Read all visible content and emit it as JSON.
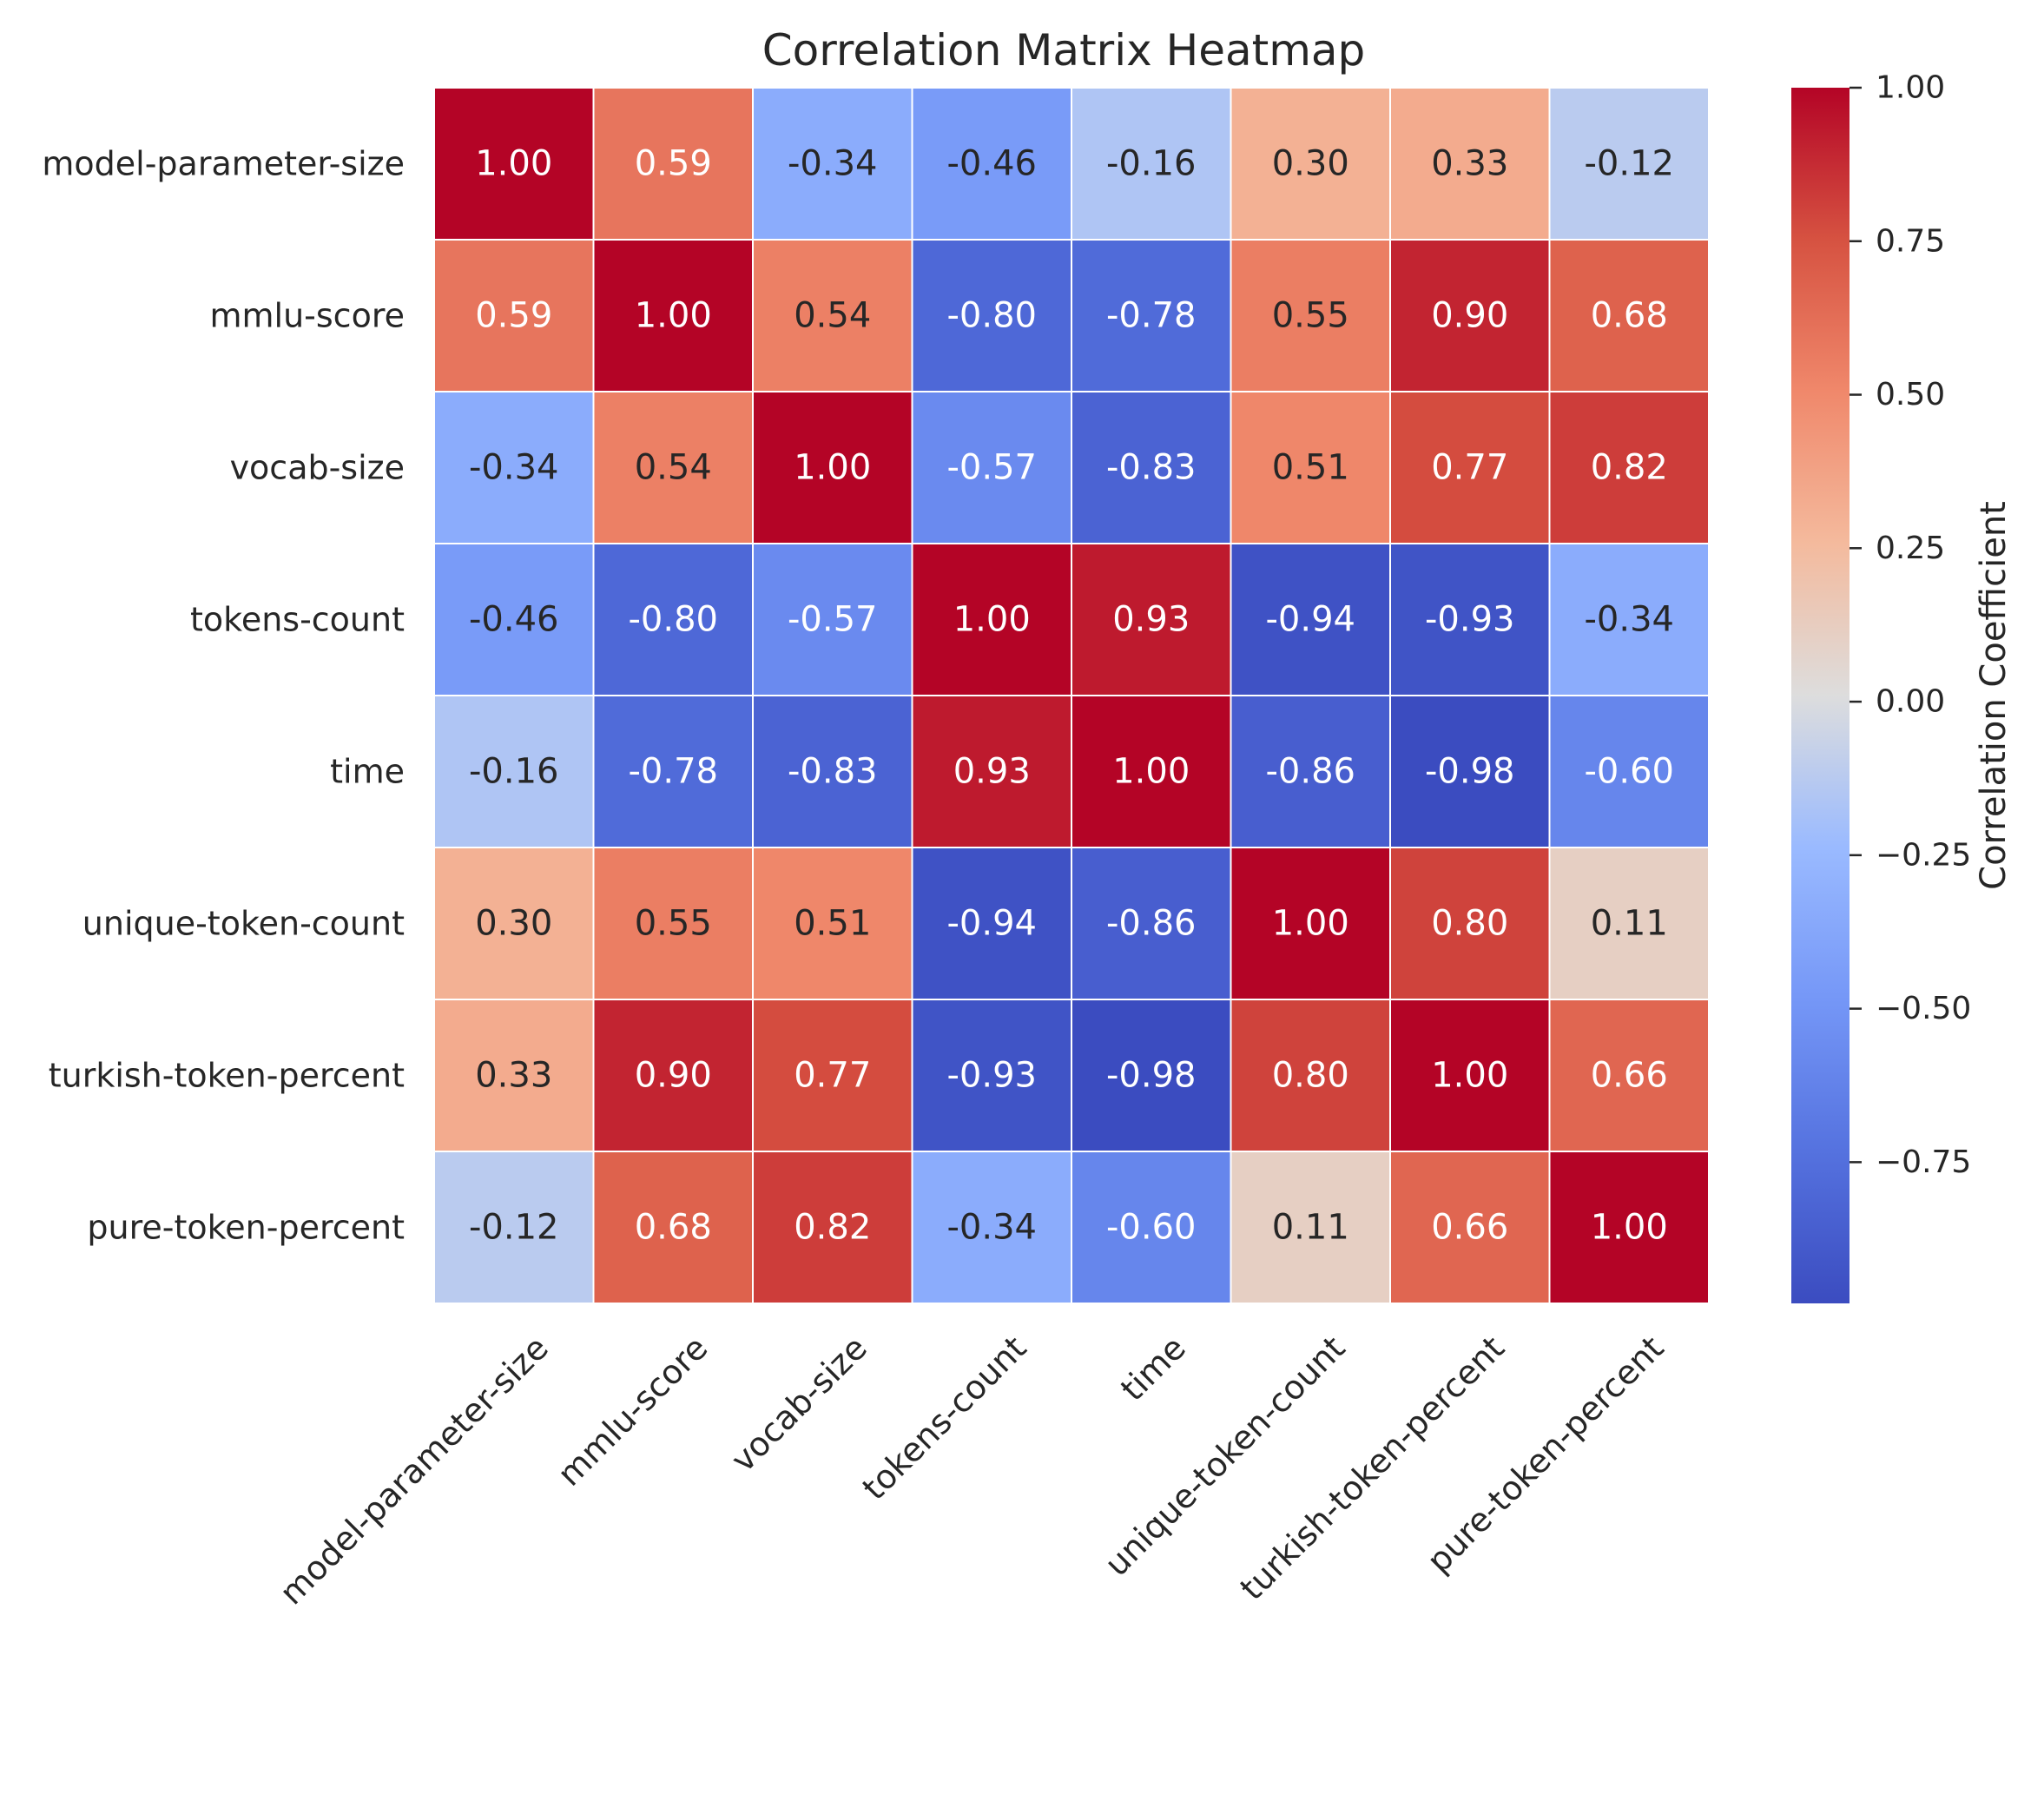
{
  "chart_data": {
    "type": "heatmap",
    "title": "Correlation Matrix Heatmap",
    "row_labels": [
      "model-parameter-size",
      "mmlu-score",
      "vocab-size",
      "tokens-count",
      "time",
      "unique-token-count",
      "turkish-token-percent",
      "pure-token-percent"
    ],
    "col_labels": [
      "model-parameter-size",
      "mmlu-score",
      "vocab-size",
      "tokens-count",
      "time",
      "unique-token-count",
      "turkish-token-percent",
      "pure-token-percent"
    ],
    "values": [
      [
        1.0,
        0.59,
        -0.34,
        -0.46,
        -0.16,
        0.3,
        0.33,
        -0.12
      ],
      [
        0.59,
        1.0,
        0.54,
        -0.8,
        -0.78,
        0.55,
        0.9,
        0.68
      ],
      [
        -0.34,
        0.54,
        1.0,
        -0.57,
        -0.83,
        0.51,
        0.77,
        0.82
      ],
      [
        -0.46,
        -0.8,
        -0.57,
        1.0,
        0.93,
        -0.94,
        -0.93,
        -0.34
      ],
      [
        -0.16,
        -0.78,
        -0.83,
        0.93,
        1.0,
        -0.86,
        -0.98,
        -0.6
      ],
      [
        0.3,
        0.55,
        0.51,
        -0.94,
        -0.86,
        1.0,
        0.8,
        0.11
      ],
      [
        0.33,
        0.9,
        0.77,
        -0.93,
        -0.98,
        0.8,
        1.0,
        0.66
      ],
      [
        -0.12,
        0.68,
        0.82,
        -0.34,
        -0.6,
        0.11,
        0.66,
        1.0
      ]
    ],
    "colormap": "coolwarm",
    "colorbar": {
      "label": "Correlation Coefficient",
      "range": [
        -0.98,
        1.0
      ],
      "ticks": [
        1.0,
        0.75,
        0.5,
        0.25,
        0.0,
        -0.25,
        -0.5,
        -0.75
      ],
      "tick_labels": [
        "1.00",
        "0.75",
        "0.50",
        "0.25",
        "0.00",
        "−0.25",
        "−0.50",
        "−0.75"
      ]
    }
  }
}
